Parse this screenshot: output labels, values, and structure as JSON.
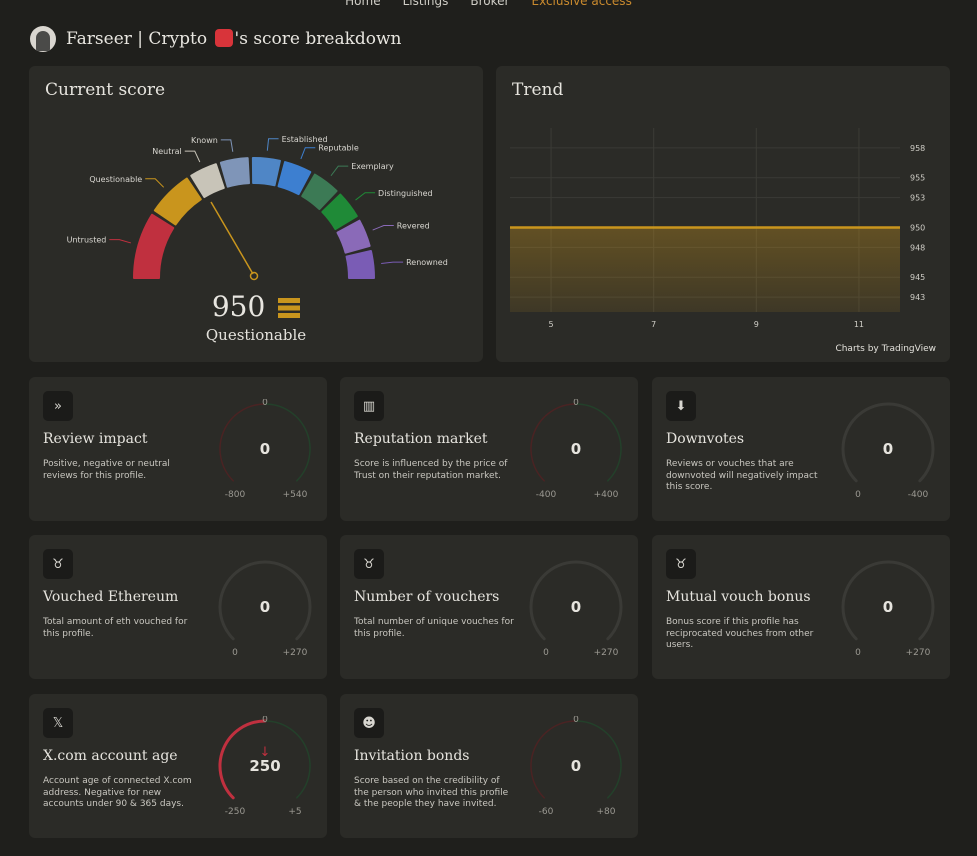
{
  "nav": {
    "items": [
      "Home",
      "Listings",
      "Broker",
      "Exclusive access"
    ]
  },
  "header": {
    "name": "Farseer | Crypto",
    "suffix": "'s score breakdown"
  },
  "current_score": {
    "title": "Current score",
    "score": "950",
    "level": "Questionable",
    "tiers": [
      "Untrusted",
      "Questionable",
      "Neutral",
      "Known",
      "Established",
      "Reputable",
      "Exemplary",
      "Distinguished",
      "Revered",
      "Renowned"
    ],
    "tier_colors": [
      "#c0303f",
      "#c9951d",
      "#c8c4b8",
      "#7f95b8",
      "#4f86c6",
      "#3d7fd0",
      "#3c7a55",
      "#1f8a37",
      "#8a6ab8",
      "#7a5cb5"
    ],
    "needle_color": "#c9951d"
  },
  "trend": {
    "title": "Trend",
    "credit": "Charts by TradingView"
  },
  "chart_data": {
    "type": "area",
    "title": "Trend",
    "x": [
      5,
      7,
      9,
      11
    ],
    "y_ticks": [
      958,
      955,
      953,
      950,
      948,
      945,
      943
    ],
    "values": [
      950,
      950,
      950,
      950
    ],
    "ylim": [
      941.5,
      960
    ],
    "line_color": "#c9951d"
  },
  "metrics": [
    {
      "title": "Review impact",
      "desc": "Positive, negative or neutral reviews for this profile.",
      "value": "0",
      "top": "0",
      "min": "-800",
      "max": "+540",
      "icon": "double-chevron-icon"
    },
    {
      "title": "Reputation market",
      "desc": "Score is influenced by the price of Trust on their reputation market.",
      "value": "0",
      "top": "0",
      "min": "-400",
      "max": "+400",
      "icon": "market-bars-icon"
    },
    {
      "title": "Downvotes",
      "desc": "Reviews or vouches that are downvoted will negatively impact this score.",
      "value": "0",
      "top": "",
      "min": "0",
      "max": "-400",
      "icon": "arrow-down-icon"
    },
    {
      "title": "Vouched Ethereum",
      "desc": "Total amount of eth vouched for this profile.",
      "value": "0",
      "top": "",
      "min": "0",
      "max": "+270",
      "icon": "vouch-icon"
    },
    {
      "title": "Number of vouchers",
      "desc": "Total number of unique vouches for this profile.",
      "value": "0",
      "top": "",
      "min": "0",
      "max": "+270",
      "icon": "vouch-icon"
    },
    {
      "title": "Mutual vouch bonus",
      "desc": "Bonus score if this profile has reciprocated vouches from other users.",
      "value": "0",
      "top": "",
      "min": "0",
      "max": "+270",
      "icon": "vouch-icon"
    },
    {
      "title": "X.com account age",
      "desc": "Account age of connected X.com address. Negative for new accounts under 90 & 365 days.",
      "value": "250",
      "top": "0",
      "min": "-250",
      "max": "+5",
      "icon": "x-logo-icon"
    },
    {
      "title": "Invitation bonds",
      "desc": "Score based on the credibility of the person who invited this profile & the people they have invited.",
      "value": "0",
      "top": "0",
      "min": "-60",
      "max": "+80",
      "icon": "invite-icon"
    }
  ]
}
